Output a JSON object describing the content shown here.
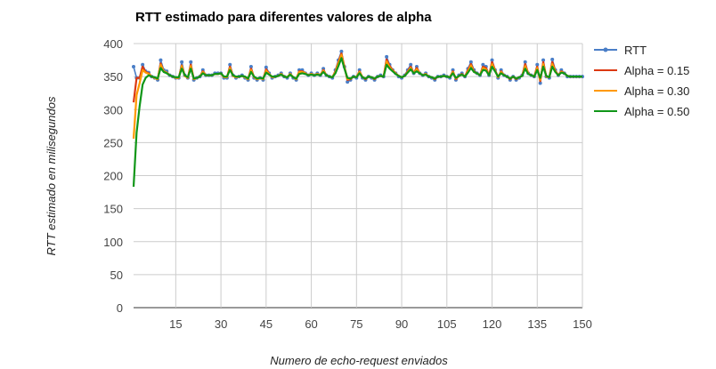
{
  "chart_data": {
    "type": "line",
    "title": "RTT estimado para diferentes valores de alpha",
    "xlabel": "Numero de echo-request enviados",
    "ylabel": "RTT estimado en milisegundos",
    "xlim": [
      1,
      150
    ],
    "ylim": [
      0,
      400
    ],
    "x_ticks": [
      15,
      30,
      45,
      60,
      75,
      90,
      105,
      120,
      135,
      150
    ],
    "y_ticks": [
      0,
      50,
      100,
      150,
      200,
      250,
      300,
      350,
      400
    ],
    "grid": true,
    "legend_position": "right",
    "x": [
      1,
      2,
      3,
      4,
      5,
      6,
      7,
      8,
      9,
      10,
      11,
      12,
      13,
      14,
      15,
      16,
      17,
      18,
      19,
      20,
      21,
      22,
      23,
      24,
      25,
      26,
      27,
      28,
      29,
      30,
      31,
      32,
      33,
      34,
      35,
      36,
      37,
      38,
      39,
      40,
      41,
      42,
      43,
      44,
      45,
      46,
      47,
      48,
      49,
      50,
      51,
      52,
      53,
      54,
      55,
      56,
      57,
      58,
      59,
      60,
      61,
      62,
      63,
      64,
      65,
      66,
      67,
      68,
      69,
      70,
      71,
      72,
      73,
      74,
      75,
      76,
      77,
      78,
      79,
      80,
      81,
      82,
      83,
      84,
      85,
      86,
      87,
      88,
      89,
      90,
      91,
      92,
      93,
      94,
      95,
      96,
      97,
      98,
      99,
      100,
      101,
      102,
      103,
      104,
      105,
      106,
      107,
      108,
      109,
      110,
      111,
      112,
      113,
      114,
      115,
      116,
      117,
      118,
      119,
      120,
      121,
      122,
      123,
      124,
      125,
      126,
      127,
      128,
      129,
      130,
      131,
      132,
      133,
      134,
      135,
      136,
      137,
      138,
      139,
      140,
      141,
      142,
      143,
      144,
      145,
      146,
      147,
      148,
      149,
      150
    ],
    "series": [
      {
        "name": "RTT",
        "color": "#4a7ec7",
        "markers": true,
        "values": [
          365,
          348,
          348,
          368,
          358,
          356,
          350,
          348,
          345,
          375,
          360,
          358,
          352,
          350,
          348,
          348,
          372,
          352,
          348,
          372,
          345,
          348,
          350,
          360,
          352,
          352,
          352,
          355,
          355,
          355,
          348,
          348,
          368,
          352,
          348,
          350,
          352,
          348,
          345,
          365,
          348,
          345,
          348,
          345,
          364,
          355,
          348,
          350,
          352,
          355,
          350,
          348,
          355,
          348,
          345,
          360,
          360,
          355,
          352,
          355,
          352,
          355,
          352,
          362,
          352,
          350,
          348,
          360,
          375,
          388,
          365,
          342,
          345,
          350,
          348,
          360,
          348,
          345,
          350,
          348,
          345,
          350,
          352,
          350,
          380,
          368,
          360,
          355,
          350,
          348,
          352,
          360,
          368,
          355,
          365,
          355,
          352,
          355,
          350,
          348,
          345,
          350,
          350,
          352,
          350,
          348,
          360,
          345,
          352,
          355,
          350,
          362,
          372,
          360,
          355,
          352,
          368,
          365,
          352,
          375,
          360,
          348,
          360,
          352,
          350,
          345,
          350,
          345,
          348,
          352,
          372,
          355,
          352,
          350,
          368,
          340,
          375,
          350,
          348,
          376,
          360,
          352,
          360,
          355,
          350,
          350,
          350,
          350,
          350,
          350
        ]
      },
      {
        "name": "Alpha = 0.15",
        "color": "#dc3912",
        "markers": false,
        "values": [
          311,
          348,
          348,
          365,
          357,
          355,
          350,
          348,
          346,
          370,
          358,
          356,
          352,
          350,
          348,
          348,
          367,
          351,
          348,
          368,
          346,
          348,
          350,
          358,
          352,
          352,
          352,
          354,
          354,
          355,
          349,
          349,
          365,
          351,
          349,
          350,
          351,
          349,
          346,
          362,
          349,
          346,
          348,
          346,
          361,
          354,
          349,
          350,
          351,
          354,
          350,
          349,
          354,
          349,
          346,
          358,
          358,
          355,
          352,
          354,
          352,
          354,
          352,
          360,
          352,
          350,
          349,
          358,
          372,
          385,
          365,
          345,
          346,
          350,
          349,
          358,
          349,
          346,
          350,
          349,
          346,
          350,
          351,
          350,
          376,
          366,
          360,
          355,
          351,
          349,
          351,
          358,
          365,
          355,
          363,
          355,
          352,
          354,
          350,
          349,
          346,
          350,
          350,
          351,
          350,
          349,
          358,
          346,
          351,
          354,
          350,
          360,
          369,
          358,
          355,
          352,
          365,
          363,
          352,
          372,
          360,
          349,
          358,
          352,
          350,
          346,
          350,
          346,
          349,
          351,
          369,
          355,
          352,
          350,
          365,
          343,
          372,
          350,
          349,
          372,
          359,
          352,
          358,
          355,
          351,
          350,
          350,
          350,
          350,
          350
        ]
      },
      {
        "name": "Alpha = 0.30",
        "color": "#ff9900",
        "markers": false,
        "values": [
          256,
          322,
          340,
          360,
          356,
          354,
          350,
          348,
          346,
          368,
          358,
          356,
          352,
          350,
          348,
          348,
          366,
          351,
          348,
          366,
          346,
          348,
          350,
          357,
          352,
          352,
          352,
          354,
          354,
          355,
          349,
          349,
          363,
          351,
          349,
          350,
          351,
          349,
          346,
          360,
          349,
          346,
          348,
          346,
          359,
          354,
          349,
          350,
          351,
          354,
          350,
          349,
          354,
          349,
          346,
          357,
          357,
          355,
          352,
          354,
          352,
          354,
          352,
          359,
          352,
          350,
          349,
          357,
          370,
          383,
          364,
          346,
          347,
          350,
          349,
          357,
          349,
          347,
          350,
          349,
          347,
          350,
          351,
          350,
          373,
          364,
          359,
          355,
          351,
          349,
          351,
          357,
          363,
          355,
          361,
          355,
          352,
          354,
          350,
          349,
          347,
          350,
          350,
          351,
          350,
          349,
          357,
          347,
          351,
          353,
          350,
          358,
          367,
          357,
          355,
          352,
          363,
          361,
          352,
          369,
          359,
          349,
          357,
          352,
          350,
          347,
          350,
          347,
          349,
          351,
          366,
          355,
          352,
          350,
          363,
          345,
          369,
          350,
          349,
          369,
          358,
          352,
          357,
          355,
          351,
          350,
          350,
          350,
          350,
          350
        ]
      },
      {
        "name": "Alpha = 0.50",
        "color": "#109618",
        "markers": false,
        "values": [
          183,
          265,
          305,
          338,
          348,
          352,
          350,
          349,
          347,
          363,
          357,
          355,
          352,
          350,
          349,
          349,
          362,
          352,
          349,
          362,
          347,
          348,
          350,
          355,
          352,
          352,
          352,
          354,
          354,
          355,
          350,
          350,
          360,
          352,
          350,
          350,
          351,
          350,
          347,
          357,
          350,
          347,
          348,
          347,
          356,
          353,
          350,
          350,
          351,
          353,
          350,
          349,
          353,
          349,
          347,
          354,
          355,
          354,
          352,
          353,
          352,
          353,
          352,
          357,
          352,
          350,
          349,
          355,
          366,
          378,
          362,
          348,
          347,
          350,
          349,
          355,
          349,
          347,
          350,
          349,
          347,
          350,
          351,
          350,
          368,
          362,
          358,
          354,
          351,
          349,
          351,
          356,
          361,
          355,
          358,
          355,
          352,
          353,
          350,
          349,
          347,
          350,
          350,
          351,
          350,
          349,
          355,
          348,
          351,
          353,
          350,
          356,
          363,
          357,
          355,
          352,
          360,
          359,
          352,
          365,
          358,
          350,
          355,
          352,
          350,
          347,
          350,
          347,
          349,
          351,
          362,
          354,
          352,
          350,
          360,
          348,
          365,
          351,
          349,
          365,
          357,
          352,
          356,
          355,
          351,
          350,
          350,
          350,
          350,
          350
        ]
      }
    ]
  }
}
